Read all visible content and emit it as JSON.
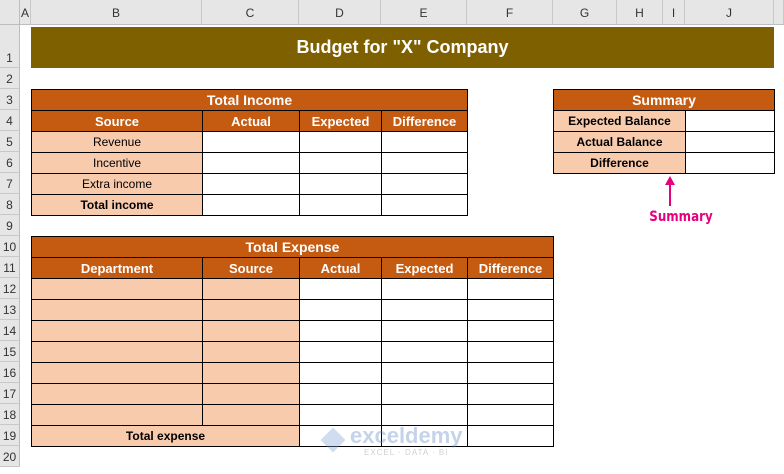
{
  "columns": [
    "A",
    "B",
    "C",
    "D",
    "E",
    "F",
    "G",
    "H",
    "I",
    "J"
  ],
  "rows": [
    "1",
    "2",
    "3",
    "4",
    "5",
    "6",
    "7",
    "8",
    "9",
    "10",
    "11",
    "12",
    "13",
    "14",
    "15",
    "16",
    "17",
    "18",
    "19",
    "20"
  ],
  "title": "Budget for \"X\" Company",
  "colors": {
    "title_bg": "#7f6000",
    "header_bg": "#c55a11",
    "label_bg": "#f8cbad",
    "annotation": "#e6007e"
  },
  "income": {
    "title": "Total Income",
    "headers": [
      "Source",
      "Actual",
      "Expected",
      "Difference"
    ],
    "rows": [
      "Revenue",
      "Incentive",
      "Extra income"
    ],
    "total": "Total income"
  },
  "expense": {
    "title": "Total Expense",
    "headers": [
      "Department",
      "Source",
      "Actual",
      "Expected",
      "Difference"
    ],
    "total": "Total expense"
  },
  "summary": {
    "title": "Summary",
    "rows": [
      "Expected Balance",
      "Actual Balance",
      "Difference"
    ],
    "annotation": "Summary"
  },
  "watermark": {
    "name": "exceldemy",
    "tagline": "EXCEL · DATA · BI"
  }
}
